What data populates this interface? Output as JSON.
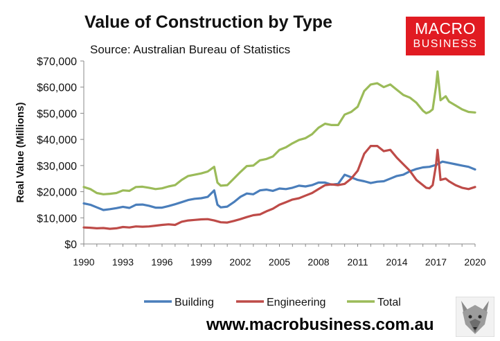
{
  "chart_data": {
    "type": "line",
    "title": "Value of Construction by Type",
    "subtitle": "Source: Australian Bureau of Statistics",
    "ylabel": "Real Value (Millions)",
    "xlabel": "",
    "xlim": [
      1990,
      2020
    ],
    "ylim": [
      0,
      70000
    ],
    "x_ticks": [
      "1990",
      "1993",
      "1996",
      "1999",
      "2002",
      "2005",
      "2008",
      "2011",
      "2014",
      "2017",
      "2020"
    ],
    "y_ticks": [
      "$0",
      "$10,000",
      "$20,000",
      "$30,000",
      "$40,000",
      "$50,000",
      "$60,000",
      "$70,000"
    ],
    "grid": false,
    "legend_position": "bottom",
    "series": [
      {
        "name": "Building",
        "color": "#4a7ebb",
        "points": [
          [
            1990.0,
            15500
          ],
          [
            1990.5,
            15000
          ],
          [
            1991.0,
            14000
          ],
          [
            1991.5,
            13000
          ],
          [
            1992.0,
            13300
          ],
          [
            1992.5,
            13700
          ],
          [
            1993.0,
            14200
          ],
          [
            1993.5,
            13800
          ],
          [
            1994.0,
            15000
          ],
          [
            1994.5,
            15100
          ],
          [
            1995.0,
            14600
          ],
          [
            1995.5,
            13900
          ],
          [
            1996.0,
            13900
          ],
          [
            1996.5,
            14500
          ],
          [
            1997.0,
            15200
          ],
          [
            1997.5,
            16000
          ],
          [
            1998.0,
            16800
          ],
          [
            1998.5,
            17300
          ],
          [
            1999.0,
            17500
          ],
          [
            1999.5,
            18000
          ],
          [
            2000.0,
            20500
          ],
          [
            2000.25,
            15000
          ],
          [
            2000.5,
            14000
          ],
          [
            2001.0,
            14300
          ],
          [
            2001.5,
            16000
          ],
          [
            2002.0,
            18000
          ],
          [
            2002.5,
            19300
          ],
          [
            2003.0,
            19000
          ],
          [
            2003.5,
            20500
          ],
          [
            2004.0,
            20800
          ],
          [
            2004.5,
            20300
          ],
          [
            2005.0,
            21200
          ],
          [
            2005.5,
            21000
          ],
          [
            2006.0,
            21500
          ],
          [
            2006.5,
            22300
          ],
          [
            2007.0,
            22000
          ],
          [
            2007.5,
            22500
          ],
          [
            2008.0,
            23500
          ],
          [
            2008.5,
            23500
          ],
          [
            2009.0,
            22700
          ],
          [
            2009.5,
            23000
          ],
          [
            2010.0,
            26500
          ],
          [
            2010.5,
            25500
          ],
          [
            2011.0,
            24500
          ],
          [
            2011.5,
            24000
          ],
          [
            2012.0,
            23300
          ],
          [
            2012.5,
            23800
          ],
          [
            2013.0,
            24000
          ],
          [
            2013.5,
            25000
          ],
          [
            2014.0,
            26000
          ],
          [
            2014.5,
            26500
          ],
          [
            2015.0,
            27800
          ],
          [
            2015.5,
            28700
          ],
          [
            2016.0,
            29300
          ],
          [
            2016.5,
            29500
          ],
          [
            2017.0,
            30200
          ],
          [
            2017.5,
            31500
          ],
          [
            2018.0,
            31000
          ],
          [
            2018.5,
            30500
          ],
          [
            2019.0,
            30000
          ],
          [
            2019.5,
            29500
          ],
          [
            2020.0,
            28500
          ]
        ]
      },
      {
        "name": "Engineering",
        "color": "#be4b48",
        "points": [
          [
            1990.0,
            6300
          ],
          [
            1990.5,
            6200
          ],
          [
            1991.0,
            6000
          ],
          [
            1991.5,
            6100
          ],
          [
            1992.0,
            5800
          ],
          [
            1992.5,
            6000
          ],
          [
            1993.0,
            6500
          ],
          [
            1993.5,
            6300
          ],
          [
            1994.0,
            6700
          ],
          [
            1994.5,
            6600
          ],
          [
            1995.0,
            6700
          ],
          [
            1995.5,
            7000
          ],
          [
            1996.0,
            7300
          ],
          [
            1996.5,
            7500
          ],
          [
            1997.0,
            7300
          ],
          [
            1997.5,
            8500
          ],
          [
            1998.0,
            9000
          ],
          [
            1998.5,
            9200
          ],
          [
            1999.0,
            9400
          ],
          [
            1999.5,
            9500
          ],
          [
            2000.0,
            9000
          ],
          [
            2000.5,
            8300
          ],
          [
            2001.0,
            8200
          ],
          [
            2001.5,
            8800
          ],
          [
            2002.0,
            9500
          ],
          [
            2002.5,
            10300
          ],
          [
            2003.0,
            11000
          ],
          [
            2003.5,
            11300
          ],
          [
            2004.0,
            12500
          ],
          [
            2004.5,
            13500
          ],
          [
            2005.0,
            15000
          ],
          [
            2005.5,
            16000
          ],
          [
            2006.0,
            17000
          ],
          [
            2006.5,
            17500
          ],
          [
            2007.0,
            18500
          ],
          [
            2007.5,
            19500
          ],
          [
            2008.0,
            21000
          ],
          [
            2008.5,
            22500
          ],
          [
            2009.0,
            22800
          ],
          [
            2009.5,
            22500
          ],
          [
            2010.0,
            23000
          ],
          [
            2010.5,
            25000
          ],
          [
            2011.0,
            28000
          ],
          [
            2011.5,
            34500
          ],
          [
            2012.0,
            37500
          ],
          [
            2012.5,
            37500
          ],
          [
            2013.0,
            35500
          ],
          [
            2013.5,
            36000
          ],
          [
            2014.0,
            33000
          ],
          [
            2014.5,
            30500
          ],
          [
            2015.0,
            28000
          ],
          [
            2015.5,
            24500
          ],
          [
            2016.0,
            22500
          ],
          [
            2016.25,
            21500
          ],
          [
            2016.5,
            21300
          ],
          [
            2016.75,
            22500
          ],
          [
            2017.0,
            30000
          ],
          [
            2017.12,
            36000
          ],
          [
            2017.25,
            30000
          ],
          [
            2017.35,
            24500
          ],
          [
            2017.75,
            25000
          ],
          [
            2018.0,
            24000
          ],
          [
            2018.5,
            22500
          ],
          [
            2019.0,
            21500
          ],
          [
            2019.5,
            21000
          ],
          [
            2020.0,
            21800
          ]
        ]
      },
      {
        "name": "Total",
        "color": "#9bbb59",
        "points": [
          [
            1990.0,
            21800
          ],
          [
            1990.5,
            21000
          ],
          [
            1991.0,
            19500
          ],
          [
            1991.5,
            19000
          ],
          [
            1992.0,
            19200
          ],
          [
            1992.5,
            19500
          ],
          [
            1993.0,
            20500
          ],
          [
            1993.5,
            20300
          ],
          [
            1994.0,
            21800
          ],
          [
            1994.5,
            21900
          ],
          [
            1995.0,
            21500
          ],
          [
            1995.5,
            21000
          ],
          [
            1996.0,
            21300
          ],
          [
            1996.5,
            22000
          ],
          [
            1997.0,
            22500
          ],
          [
            1997.5,
            24500
          ],
          [
            1998.0,
            26000
          ],
          [
            1998.5,
            26500
          ],
          [
            1999.0,
            27000
          ],
          [
            1999.5,
            27700
          ],
          [
            2000.0,
            29500
          ],
          [
            2000.25,
            23500
          ],
          [
            2000.5,
            22300
          ],
          [
            2001.0,
            22500
          ],
          [
            2001.5,
            25000
          ],
          [
            2002.0,
            27500
          ],
          [
            2002.5,
            29800
          ],
          [
            2003.0,
            30000
          ],
          [
            2003.5,
            32000
          ],
          [
            2004.0,
            32500
          ],
          [
            2004.5,
            33500
          ],
          [
            2005.0,
            36000
          ],
          [
            2005.5,
            37000
          ],
          [
            2006.0,
            38500
          ],
          [
            2006.5,
            39800
          ],
          [
            2007.0,
            40500
          ],
          [
            2007.5,
            42000
          ],
          [
            2008.0,
            44500
          ],
          [
            2008.5,
            46000
          ],
          [
            2009.0,
            45500
          ],
          [
            2009.5,
            45500
          ],
          [
            2010.0,
            49500
          ],
          [
            2010.5,
            50500
          ],
          [
            2011.0,
            52500
          ],
          [
            2011.5,
            58500
          ],
          [
            2012.0,
            61000
          ],
          [
            2012.5,
            61500
          ],
          [
            2013.0,
            60000
          ],
          [
            2013.5,
            61000
          ],
          [
            2014.0,
            59000
          ],
          [
            2014.5,
            57000
          ],
          [
            2015.0,
            56000
          ],
          [
            2015.5,
            54000
          ],
          [
            2016.0,
            51000
          ],
          [
            2016.25,
            50000
          ],
          [
            2016.5,
            50500
          ],
          [
            2016.75,
            51500
          ],
          [
            2017.0,
            60000
          ],
          [
            2017.12,
            66000
          ],
          [
            2017.25,
            60000
          ],
          [
            2017.35,
            55000
          ],
          [
            2017.75,
            56500
          ],
          [
            2018.0,
            54500
          ],
          [
            2018.5,
            53000
          ],
          [
            2019.0,
            51500
          ],
          [
            2019.5,
            50500
          ],
          [
            2020.0,
            50300
          ]
        ]
      }
    ]
  },
  "branding": {
    "logo_line1": "MACRO",
    "logo_line2": "BUSINESS",
    "website": "www.macrobusiness.com.au",
    "logo_color": "#e11b22",
    "mascot_icon": "wolf-icon"
  }
}
